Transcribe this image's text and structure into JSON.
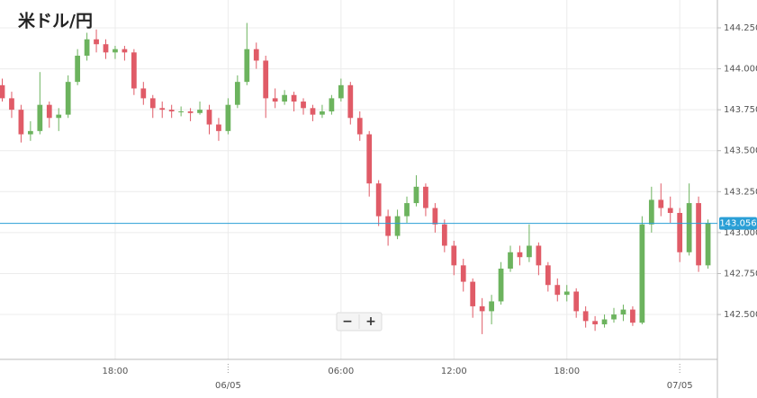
{
  "chart_data": {
    "type": "candlestick",
    "title": "米ドル/円",
    "x": [
      12.0,
      12.5,
      13.0,
      13.5,
      14.0,
      14.5,
      15.0,
      15.5,
      16.0,
      16.5,
      17.0,
      17.5,
      18.0,
      18.5,
      19.0,
      19.5,
      20.0,
      20.5,
      21.0,
      21.5,
      22.0,
      22.5,
      23.0,
      23.5,
      24.0,
      24.5,
      25.0,
      25.5,
      26.0,
      26.5,
      27.0,
      27.5,
      28.0,
      28.5,
      29.0,
      29.5,
      30.0,
      30.5,
      31.0,
      31.5,
      32.0,
      32.5,
      33.0,
      33.5,
      34.0,
      34.5,
      35.0,
      35.5,
      36.0,
      36.5,
      37.0,
      37.5,
      38.0,
      38.5,
      39.0,
      39.5,
      40.0,
      40.5,
      41.0,
      41.5,
      42.0,
      42.5,
      43.0,
      43.5,
      44.0,
      44.5,
      45.0,
      45.5,
      46.0,
      46.5,
      47.0,
      47.5,
      48.0,
      48.5,
      49.0,
      49.5
    ],
    "candles": [
      [
        143.9,
        143.94,
        143.8,
        143.82
      ],
      [
        143.82,
        143.86,
        143.7,
        143.75
      ],
      [
        143.75,
        143.78,
        143.55,
        143.6
      ],
      [
        143.6,
        143.68,
        143.56,
        143.62
      ],
      [
        143.62,
        143.98,
        143.6,
        143.78
      ],
      [
        143.78,
        143.8,
        143.64,
        143.7
      ],
      [
        143.7,
        143.76,
        143.62,
        143.72
      ],
      [
        143.72,
        143.96,
        143.7,
        143.92
      ],
      [
        143.92,
        144.12,
        143.9,
        144.08
      ],
      [
        144.08,
        144.22,
        144.05,
        144.18
      ],
      [
        144.18,
        144.24,
        144.1,
        144.15
      ],
      [
        144.15,
        144.18,
        144.06,
        144.1
      ],
      [
        144.1,
        144.14,
        144.06,
        144.12
      ],
      [
        144.12,
        144.14,
        144.05,
        144.1
      ],
      [
        144.1,
        144.12,
        143.84,
        143.88
      ],
      [
        143.88,
        143.92,
        143.78,
        143.82
      ],
      [
        143.82,
        143.84,
        143.7,
        143.76
      ],
      [
        143.76,
        143.8,
        143.7,
        143.75
      ],
      [
        143.75,
        143.78,
        143.7,
        143.74
      ],
      [
        143.74,
        143.77,
        143.71,
        143.74
      ],
      [
        143.74,
        143.76,
        143.68,
        143.73
      ],
      [
        143.73,
        143.8,
        143.72,
        143.75
      ],
      [
        143.75,
        143.78,
        143.6,
        143.66
      ],
      [
        143.66,
        143.7,
        143.56,
        143.62
      ],
      [
        143.62,
        143.82,
        143.6,
        143.78
      ],
      [
        143.78,
        143.96,
        143.76,
        143.92
      ],
      [
        143.92,
        144.28,
        143.9,
        144.12
      ],
      [
        144.12,
        144.16,
        144.0,
        144.05
      ],
      [
        144.05,
        144.08,
        143.7,
        143.82
      ],
      [
        143.82,
        143.88,
        143.76,
        143.8
      ],
      [
        143.8,
        143.87,
        143.78,
        143.84
      ],
      [
        143.84,
        143.86,
        143.74,
        143.8
      ],
      [
        143.8,
        143.82,
        143.72,
        143.76
      ],
      [
        143.76,
        143.78,
        143.68,
        143.72
      ],
      [
        143.72,
        143.78,
        143.7,
        143.74
      ],
      [
        143.74,
        143.84,
        143.72,
        143.82
      ],
      [
        143.82,
        143.94,
        143.8,
        143.9
      ],
      [
        143.9,
        143.92,
        143.66,
        143.7
      ],
      [
        143.7,
        143.74,
        143.56,
        143.6
      ],
      [
        143.6,
        143.62,
        143.22,
        143.3
      ],
      [
        143.3,
        143.32,
        143.04,
        143.1
      ],
      [
        143.1,
        143.14,
        142.92,
        142.98
      ],
      [
        142.98,
        143.14,
        142.96,
        143.1
      ],
      [
        143.1,
        143.22,
        143.06,
        143.18
      ],
      [
        143.18,
        143.35,
        143.16,
        143.28
      ],
      [
        143.28,
        143.3,
        143.1,
        143.15
      ],
      [
        143.15,
        143.18,
        143.0,
        143.05
      ],
      [
        143.05,
        143.08,
        142.88,
        142.92
      ],
      [
        142.92,
        142.95,
        142.74,
        142.8
      ],
      [
        142.8,
        142.84,
        142.64,
        142.7
      ],
      [
        142.7,
        142.72,
        142.48,
        142.55
      ],
      [
        142.55,
        142.6,
        142.38,
        142.52
      ],
      [
        142.52,
        142.62,
        142.44,
        142.58
      ],
      [
        142.58,
        142.82,
        142.56,
        142.78
      ],
      [
        142.78,
        142.92,
        142.76,
        142.88
      ],
      [
        142.88,
        142.92,
        142.8,
        142.85
      ],
      [
        142.85,
        143.05,
        142.82,
        142.92
      ],
      [
        142.92,
        142.94,
        142.74,
        142.8
      ],
      [
        142.8,
        142.82,
        142.64,
        142.68
      ],
      [
        142.68,
        142.72,
        142.58,
        142.62
      ],
      [
        142.62,
        142.68,
        142.58,
        142.64
      ],
      [
        142.64,
        142.66,
        142.48,
        142.52
      ],
      [
        142.52,
        142.55,
        142.42,
        142.46
      ],
      [
        142.46,
        142.49,
        142.4,
        142.44
      ],
      [
        142.44,
        142.5,
        142.42,
        142.47
      ],
      [
        142.47,
        142.54,
        142.45,
        142.5
      ],
      [
        142.5,
        142.56,
        142.46,
        142.53
      ],
      [
        142.53,
        142.55,
        142.43,
        142.45
      ],
      [
        142.45,
        143.1,
        142.44,
        143.05
      ],
      [
        143.05,
        143.28,
        143.0,
        143.2
      ],
      [
        143.2,
        143.3,
        143.1,
        143.15
      ],
      [
        143.15,
        143.22,
        143.06,
        143.12
      ],
      [
        143.12,
        143.15,
        142.82,
        142.88
      ],
      [
        142.88,
        143.3,
        142.86,
        143.18
      ],
      [
        143.18,
        143.22,
        142.76,
        142.8
      ],
      [
        142.8,
        143.08,
        142.78,
        143.06
      ]
    ],
    "up_color": "#6cb35e",
    "down_color": "#e05b67",
    "xlim": [
      11.88,
      50.0
    ],
    "xticks": [
      {
        "value": 18,
        "label": "18:00"
      },
      {
        "value": 30,
        "label": "06:00"
      },
      {
        "value": 36,
        "label": "12:00"
      },
      {
        "value": 42,
        "label": "18:00"
      }
    ],
    "date_ticks": [
      {
        "value": 24,
        "label": "06/05"
      },
      {
        "value": 48,
        "label": "07/05"
      }
    ],
    "ylim": [
      142.226,
      144.42
    ],
    "yticks": [
      {
        "value": 142.5,
        "label": "142.500"
      },
      {
        "value": 142.75,
        "label": "142.750"
      },
      {
        "value": 143.0,
        "label": "143.000"
      },
      {
        "value": 143.25,
        "label": "143.250"
      },
      {
        "value": 143.5,
        "label": "143.500"
      },
      {
        "value": 143.75,
        "label": "143.750"
      },
      {
        "value": 144.0,
        "label": "144.000"
      },
      {
        "value": 144.25,
        "label": "144.250"
      }
    ],
    "last_price": 143.056,
    "last_price_color": "#2a9fd6",
    "grid": true,
    "zoom_controls": [
      "−",
      "+"
    ]
  }
}
